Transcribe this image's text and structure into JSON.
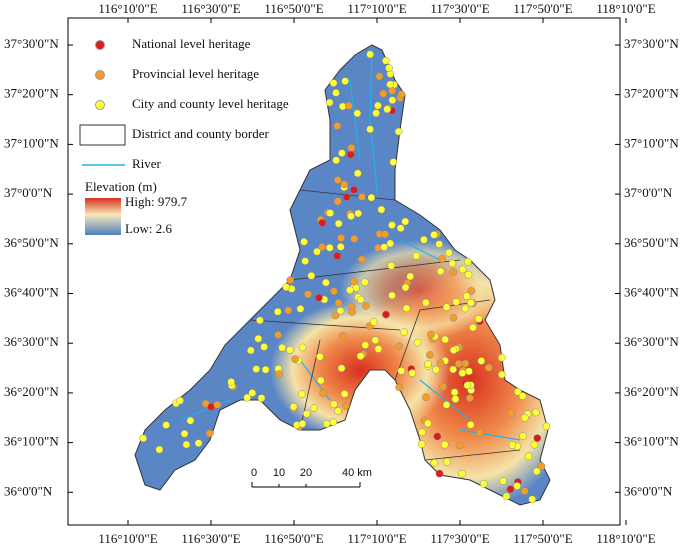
{
  "map": {
    "lon_labels": [
      "116°10'0\"E",
      "116°30'0\"E",
      "116°50'0\"E",
      "117°10'0\"E",
      "117°30'0\"E",
      "117°50'0\"E",
      "118°10'0\"E"
    ],
    "lat_labels": [
      "37°30'0\"N",
      "37°20'0\"N",
      "37°10'0\"N",
      "37°0'0\"N",
      "36°50'0\"N",
      "36°40'0\"N",
      "36°30'0\"N",
      "36°20'0\"N",
      "36°10'0\"N",
      "36°0'0\"N"
    ],
    "legend": [
      "National level heritage",
      "Provincial level heritage",
      "City and county level heritage",
      "District and county border",
      "River"
    ],
    "elevation": {
      "title": "Elevation (m)",
      "high": "High: 979.7",
      "low": "Low: 2.6"
    },
    "scale_bar": [
      "0",
      "10",
      "20",
      "40 km"
    ]
  }
}
